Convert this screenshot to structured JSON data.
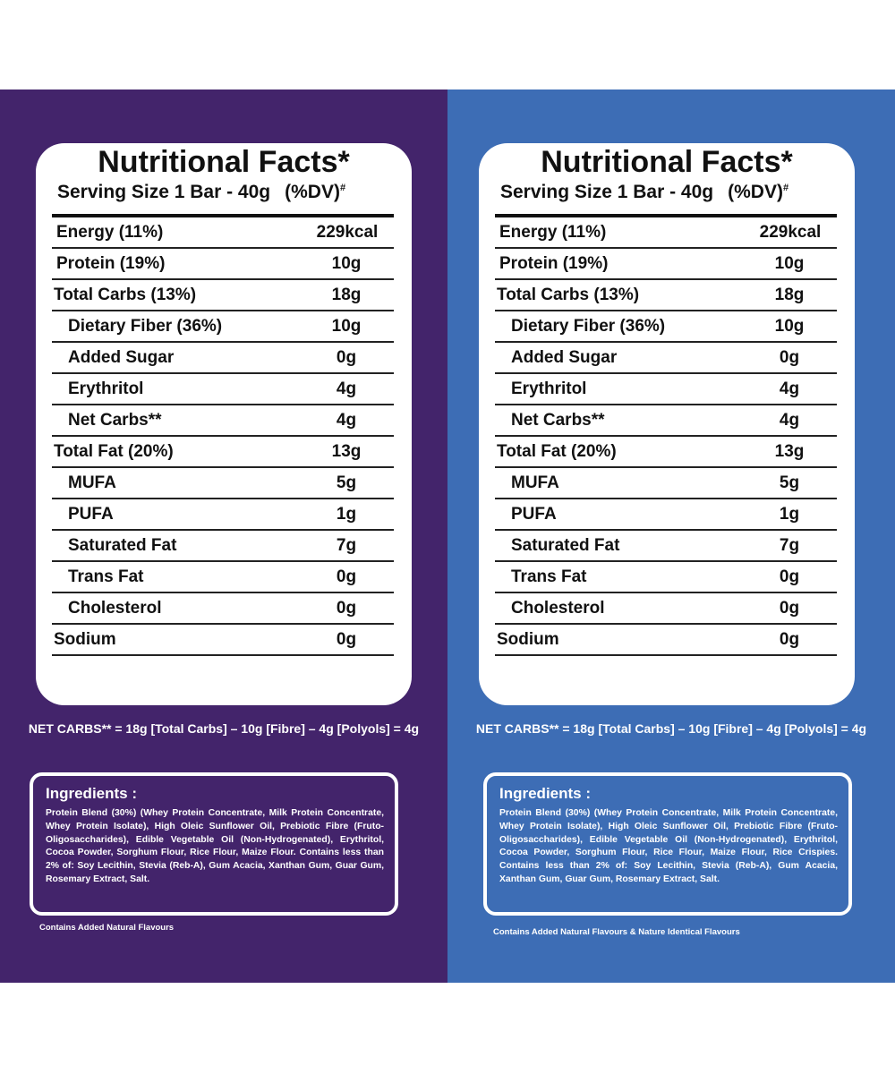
{
  "panels": [
    {
      "title": "Nutritional Facts*",
      "serving": "Serving Size 1 Bar - 40g",
      "dv": "(%DV)",
      "dv_mark": "#",
      "rows": [
        [
          "Energy (11%)",
          "229kcal"
        ],
        [
          "Protein (19%)",
          "10g"
        ],
        [
          "Total Carbs (13%)",
          "18g"
        ],
        [
          "Dietary Fiber (36%)",
          "10g"
        ],
        [
          "Added Sugar",
          "0g"
        ],
        [
          "Erythritol",
          "4g"
        ],
        [
          "Net Carbs**",
          "4g"
        ],
        [
          "Total Fat (20%)",
          "13g"
        ],
        [
          "MUFA",
          "5g"
        ],
        [
          "PUFA",
          "1g"
        ],
        [
          "Saturated Fat",
          "7g"
        ],
        [
          "Trans Fat",
          "0g"
        ],
        [
          "Cholesterol",
          "0g"
        ],
        [
          "Sodium",
          "0g"
        ]
      ],
      "net_carbs_note": "NET CARBS** = 18g [Total Carbs] – 10g [Fibre] – 4g [Polyols] = 4g",
      "ingredients_heading": "Ingredients :",
      "ingredients": "Protein Blend (30%) (Whey Protein Concentrate, Milk Protein Concentrate, Whey Protein Isolate), High Oleic Sunflower Oil, Prebiotic Fibre (Fruto-Oligosaccharides), Edible Vegetable Oil (Non-Hydrogenated), Erythritol, Cocoa Powder, Sorghum Flour, Rice Flour, Maize Flour. Contains less than 2% of: Soy Lecithin, Stevia (Reb-A), Gum Acacia, Xanthan Gum, Guar Gum, Rosemary Extract, Salt.",
      "footer": "Contains Added Natural Flavours"
    },
    {
      "title": "Nutritional Facts*",
      "serving": "Serving Size 1 Bar - 40g",
      "dv": "(%DV)",
      "dv_mark": "#",
      "rows": [
        [
          "Energy (11%)",
          "229kcal"
        ],
        [
          "Protein (19%)",
          "10g"
        ],
        [
          "Total Carbs (13%)",
          "18g"
        ],
        [
          "Dietary Fiber (36%)",
          "10g"
        ],
        [
          "Added Sugar",
          "0g"
        ],
        [
          "Erythritol",
          "4g"
        ],
        [
          "Net Carbs**",
          "4g"
        ],
        [
          "Total Fat (20%)",
          "13g"
        ],
        [
          "MUFA",
          "5g"
        ],
        [
          "PUFA",
          "1g"
        ],
        [
          "Saturated Fat",
          "7g"
        ],
        [
          "Trans Fat",
          "0g"
        ],
        [
          "Cholesterol",
          "0g"
        ],
        [
          "Sodium",
          "0g"
        ]
      ],
      "net_carbs_note": "NET CARBS** = 18g [Total Carbs] – 10g [Fibre] – 4g [Polyols] = 4g",
      "ingredients_heading": "Ingredients :",
      "ingredients": "Protein Blend (30%) (Whey Protein Concentrate, Milk Protein Concentrate, Whey Protein Isolate), High Oleic Sunflower Oil, Prebiotic Fibre (Fruto-Oligosaccharides), Edible Vegetable Oil (Non-Hydrogenated), Erythritol, Cocoa Powder, Sorghum Flour, Rice Flour, Maize Flour, Rice Crispies. Contains less than 2% of: Soy Lecithin, Stevia (Reb-A), Gum Acacia, Xanthan Gum, Guar Gum, Rosemary Extract, Salt.",
      "footer": "Contains Added Natural Flavours & Nature Identical Flavours"
    }
  ]
}
